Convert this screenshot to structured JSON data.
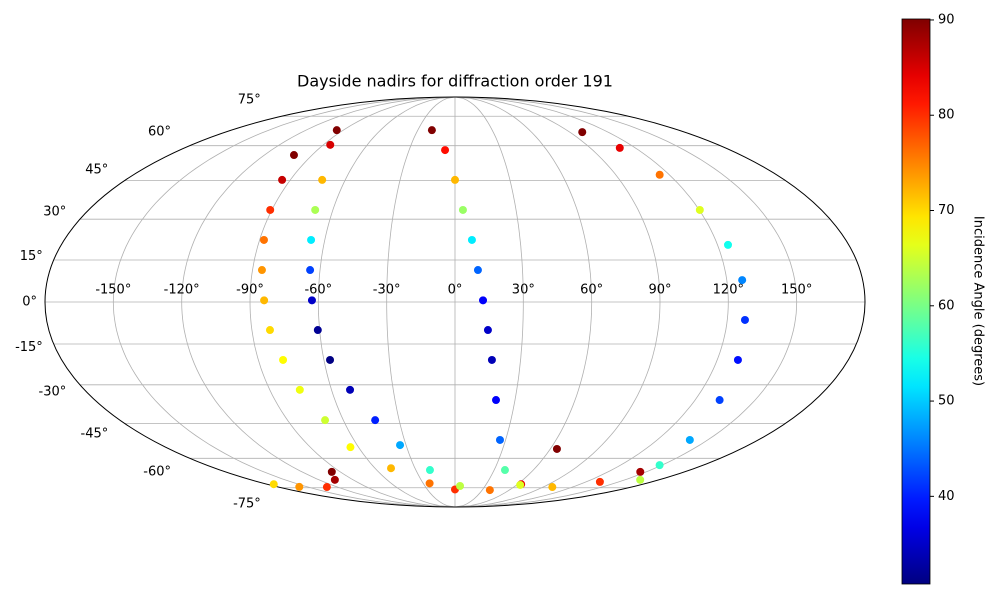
{
  "chart_data": {
    "type": "scatter",
    "projection": "mollweide",
    "title": "Dayside nadirs for diffraction order 191",
    "colormap": "jet",
    "colorbar_label": "Incidence Angle (degrees)",
    "clim": [
      30.8,
      90.1
    ],
    "cticks": [
      40,
      50,
      60,
      70,
      80,
      90
    ],
    "grid": true,
    "xticks": [
      {
        "value": -150,
        "label": "-150°"
      },
      {
        "value": -120,
        "label": "-120°"
      },
      {
        "value": -90,
        "label": "-90°"
      },
      {
        "value": -60,
        "label": "-60°"
      },
      {
        "value": -30,
        "label": "-30°"
      },
      {
        "value": 0,
        "label": "0°"
      },
      {
        "value": 30,
        "label": "30°"
      },
      {
        "value": 60,
        "label": "60°"
      },
      {
        "value": 90,
        "label": "90°"
      },
      {
        "value": 120,
        "label": "120°"
      },
      {
        "value": 150,
        "label": "150°"
      }
    ],
    "yticks": [
      {
        "value": -75,
        "label": "-75°"
      },
      {
        "value": -60,
        "label": "-60°"
      },
      {
        "value": -45,
        "label": "-45°"
      },
      {
        "value": -30,
        "label": "-30°"
      },
      {
        "value": -15,
        "label": "-15°"
      },
      {
        "value": 0,
        "label": "0°"
      },
      {
        "value": 15,
        "label": "15°"
      },
      {
        "value": 30,
        "label": "30°"
      },
      {
        "value": 45,
        "label": "45°"
      },
      {
        "value": 60,
        "label": "60°"
      },
      {
        "value": 75,
        "label": "75°"
      }
    ],
    "x": [
      -101.4,
      -94.5,
      -90.8,
      -88.0,
      -85.8,
      -83.8,
      -82.0,
      -78.7,
      -75.4,
      -69.8,
      -65.0,
      -48.0,
      -23.9,
      0,
      -95.2,
      -85.3,
      -72.6,
      -68.7,
      -66.3,
      -64.4,
      -62.8,
      -60.8,
      -57.2,
      -51.0,
      -42.9,
      -33.7,
      -19.2,
      5,
      38.5,
      63.4,
      64.2,
      -18.6,
      -6.5,
      0,
      3.9,
      7.8,
      10.2,
      12.3,
      14.6,
      16.9,
      20.5,
      26.7,
      38.3,
      63.4,
      99.3,
      132.6,
      145.3,
      99.8,
      109.7,
      114.6,
      120.3,
      124.8,
      126.8,
      127.8,
      129.5,
      132.3,
      139.4,
      148.3,
      163.4,
      -173.7,
      -158.2,
      -130.7,
      -106,
      -96.6
    ],
    "y": [
      55.8,
      45.3,
      33.5,
      22.3,
      11.4,
      0.6,
      -10,
      -20.8,
      -31.9,
      -43.7,
      -55,
      -64.7,
      -72.5,
      -76,
      67.5,
      60.4,
      45.3,
      33.5,
      22.3,
      11.4,
      0.6,
      -10,
      -20.8,
      -31.9,
      -43.7,
      -54.1,
      -65.6,
      -74,
      -76.4,
      -73,
      -55.8,
      67.5,
      58,
      45.3,
      33.5,
      22.3,
      11.4,
      0.6,
      -10,
      -20.8,
      -35.8,
      -51.9,
      -65.6,
      -73.4,
      -74.6,
      -71.7,
      -66.5,
      66.5,
      59,
      47.4,
      33.5,
      20.5,
      7.8,
      -6.4,
      -20.8,
      -35.8,
      -51.9,
      -63.2,
      -70.6,
      -73,
      -74.5,
      -74.6,
      -70.6,
      -66.5
    ],
    "c": [
      90,
      86,
      80,
      76,
      74,
      72,
      70,
      68,
      67,
      65,
      68,
      72,
      76,
      80,
      90,
      85,
      72,
      63,
      52,
      42,
      35,
      32,
      31,
      34,
      40,
      48,
      56,
      64,
      76,
      84,
      90,
      90,
      82,
      72,
      62,
      52,
      44,
      38,
      35,
      34,
      38,
      44,
      58,
      66,
      72,
      80,
      88,
      90,
      84,
      76,
      66,
      54,
      46,
      41,
      39,
      42,
      48,
      56,
      64,
      70,
      74,
      80,
      88,
      90
    ]
  }
}
